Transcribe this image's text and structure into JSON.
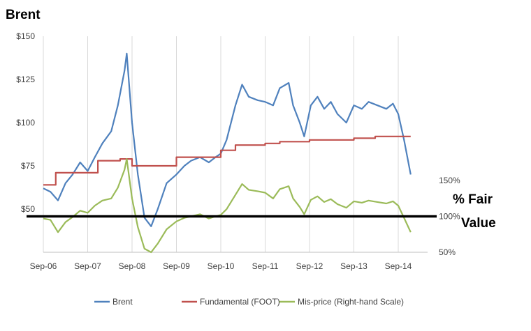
{
  "chart_data": {
    "type": "line",
    "title": "Brent",
    "side_label": [
      "% Fair",
      "Value"
    ],
    "x_tick_labels": [
      "Sep-06",
      "Sep-07",
      "Sep-08",
      "Sep-09",
      "Sep-10",
      "Sep-11",
      "Sep-12",
      "Sep-13",
      "Sep-14"
    ],
    "x_range": [
      2006.67,
      2015.67
    ],
    "left_axis": {
      "range": [
        25,
        150
      ],
      "ticks": [
        50,
        75,
        100,
        125,
        150
      ],
      "tick_labels": [
        "$50",
        "$75",
        "$100",
        "$125",
        "$150"
      ]
    },
    "right_axis": {
      "range": [
        50,
        150
      ],
      "ticks": [
        50,
        100,
        150
      ],
      "tick_labels": [
        "50%",
        "100%",
        "150%"
      ]
    },
    "reference_line": {
      "axis": "right",
      "value": 100,
      "color": "#000000"
    },
    "grid": "vertical",
    "legend_position": "bottom",
    "series": [
      {
        "name": "Brent",
        "axis": "left",
        "color": "#4F81BD",
        "x": [
          2006.67,
          2006.83,
          2007.0,
          2007.17,
          2007.33,
          2007.5,
          2007.67,
          2007.83,
          2008.0,
          2008.2,
          2008.35,
          2008.5,
          2008.55,
          2008.67,
          2008.8,
          2008.95,
          2009.1,
          2009.25,
          2009.45,
          2009.67,
          2009.85,
          2010.0,
          2010.2,
          2010.4,
          2010.55,
          2010.67,
          2010.8,
          2011.0,
          2011.15,
          2011.3,
          2011.5,
          2011.67,
          2011.85,
          2012.0,
          2012.2,
          2012.3,
          2012.45,
          2012.55,
          2012.7,
          2012.85,
          2013.0,
          2013.15,
          2013.3,
          2013.5,
          2013.67,
          2013.85,
          2014.0,
          2014.2,
          2014.4,
          2014.55,
          2014.67,
          2014.8,
          2014.95
        ],
        "y": [
          62,
          60,
          55,
          65,
          70,
          77,
          72,
          80,
          88,
          95,
          110,
          130,
          140,
          100,
          70,
          45,
          40,
          50,
          65,
          70,
          75,
          78,
          80,
          77,
          80,
          82,
          90,
          110,
          122,
          115,
          113,
          112,
          110,
          120,
          123,
          110,
          100,
          92,
          110,
          115,
          108,
          112,
          105,
          100,
          110,
          108,
          112,
          110,
          108,
          111,
          105,
          90,
          70
        ]
      },
      {
        "name": "Fundamental (FOOT)",
        "axis": "left",
        "color": "#C0504D",
        "x": [
          2006.67,
          2006.95,
          2006.95,
          2007.9,
          2007.9,
          2008.4,
          2008.4,
          2008.67,
          2008.67,
          2009.67,
          2009.67,
          2010.67,
          2010.67,
          2011.0,
          2011.0,
          2011.67,
          2011.67,
          2012.0,
          2012.0,
          2012.67,
          2012.67,
          2013.67,
          2013.67,
          2014.15,
          2014.15,
          2014.95
        ],
        "y": [
          64,
          64,
          71,
          71,
          78,
          78,
          79,
          79,
          75,
          75,
          80,
          80,
          84,
          84,
          87,
          87,
          88,
          88,
          89,
          89,
          90,
          90,
          91,
          91,
          92,
          92
        ]
      },
      {
        "name": "Mis-price (Right-hand Scale)",
        "axis": "right",
        "color": "#9BBB59",
        "x": [
          2006.67,
          2006.83,
          2007.0,
          2007.17,
          2007.33,
          2007.5,
          2007.67,
          2007.83,
          2008.0,
          2008.2,
          2008.35,
          2008.5,
          2008.55,
          2008.67,
          2008.8,
          2008.95,
          2009.1,
          2009.25,
          2009.45,
          2009.67,
          2009.85,
          2010.0,
          2010.2,
          2010.4,
          2010.55,
          2010.67,
          2010.8,
          2011.0,
          2011.15,
          2011.3,
          2011.5,
          2011.67,
          2011.85,
          2012.0,
          2012.2,
          2012.3,
          2012.45,
          2012.55,
          2012.7,
          2012.85,
          2013.0,
          2013.15,
          2013.3,
          2013.5,
          2013.67,
          2013.85,
          2014.0,
          2014.2,
          2014.4,
          2014.55,
          2014.67,
          2014.8,
          2014.95
        ],
        "y": [
          97,
          95,
          78,
          92,
          99,
          108,
          105,
          115,
          122,
          125,
          140,
          165,
          180,
          125,
          85,
          55,
          50,
          62,
          82,
          93,
          98,
          100,
          103,
          97,
          100,
          102,
          110,
          130,
          145,
          137,
          135,
          133,
          125,
          138,
          142,
          125,
          113,
          103,
          123,
          128,
          120,
          124,
          117,
          112,
          121,
          119,
          122,
          120,
          118,
          121,
          115,
          98,
          78
        ]
      }
    ]
  }
}
